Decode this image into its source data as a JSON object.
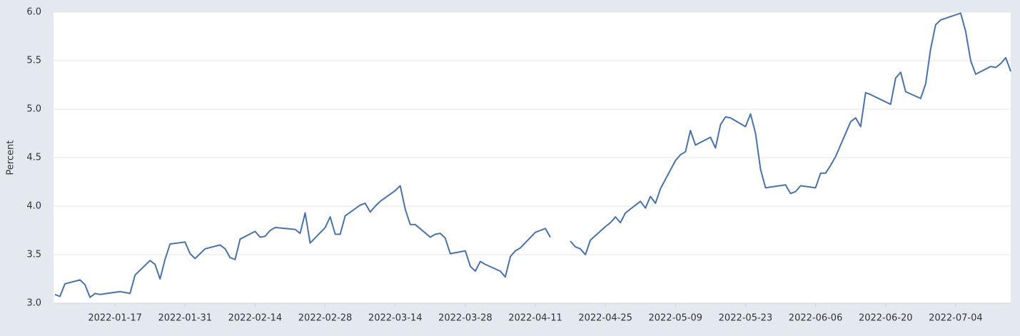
{
  "chart_data": {
    "type": "line",
    "y_label": "Percent",
    "color": "#4a72a8",
    "grid": true,
    "x": [
      "2022-01-05",
      "2022-01-06",
      "2022-01-07",
      "2022-01-10",
      "2022-01-11",
      "2022-01-12",
      "2022-01-13",
      "2022-01-14",
      "2022-01-18",
      "2022-01-19",
      "2022-01-20",
      "2022-01-21",
      "2022-01-24",
      "2022-01-25",
      "2022-01-26",
      "2022-01-27",
      "2022-01-28",
      "2022-01-31",
      "2022-02-01",
      "2022-02-02",
      "2022-02-03",
      "2022-02-04",
      "2022-02-07",
      "2022-02-08",
      "2022-02-09",
      "2022-02-10",
      "2022-02-11",
      "2022-02-14",
      "2022-02-15",
      "2022-02-16",
      "2022-02-17",
      "2022-02-18",
      "2022-02-22",
      "2022-02-23",
      "2022-02-24",
      "2022-02-25",
      "2022-02-28",
      "2022-03-01",
      "2022-03-02",
      "2022-03-03",
      "2022-03-04",
      "2022-03-07",
      "2022-03-08",
      "2022-03-09",
      "2022-03-10",
      "2022-03-11",
      "2022-03-14",
      "2022-03-15",
      "2022-03-16",
      "2022-03-17",
      "2022-03-18",
      "2022-03-21",
      "2022-03-22",
      "2022-03-23",
      "2022-03-24",
      "2022-03-25",
      "2022-03-28",
      "2022-03-29",
      "2022-03-30",
      "2022-03-31",
      "2022-04-01",
      "2022-04-04",
      "2022-04-05",
      "2022-04-06",
      "2022-04-07",
      "2022-04-08",
      "2022-04-11",
      "2022-04-12",
      "2022-04-13",
      "2022-04-14",
      "2022-04-15",
      "2022-04-18",
      "2022-04-19",
      "2022-04-20",
      "2022-04-21",
      "2022-04-22",
      "2022-04-25",
      "2022-04-26",
      "2022-04-27",
      "2022-04-28",
      "2022-04-29",
      "2022-05-02",
      "2022-05-03",
      "2022-05-04",
      "2022-05-05",
      "2022-05-06",
      "2022-05-09",
      "2022-05-10",
      "2022-05-11",
      "2022-05-12",
      "2022-05-13",
      "2022-05-16",
      "2022-05-17",
      "2022-05-18",
      "2022-05-19",
      "2022-05-20",
      "2022-05-23",
      "2022-05-24",
      "2022-05-25",
      "2022-05-26",
      "2022-05-27",
      "2022-05-31",
      "2022-06-01",
      "2022-06-02",
      "2022-06-03",
      "2022-06-06",
      "2022-06-07",
      "2022-06-08",
      "2022-06-09",
      "2022-06-10",
      "2022-06-13",
      "2022-06-14",
      "2022-06-15",
      "2022-06-16",
      "2022-06-17",
      "2022-06-21",
      "2022-06-22",
      "2022-06-23",
      "2022-06-24",
      "2022-06-27",
      "2022-06-28",
      "2022-06-29",
      "2022-06-30",
      "2022-07-01",
      "2022-07-05",
      "2022-07-06",
      "2022-07-07",
      "2022-07-08",
      "2022-07-11",
      "2022-07-12",
      "2022-07-13",
      "2022-07-14",
      "2022-07-15"
    ],
    "values": [
      3.09,
      3.07,
      3.2,
      3.24,
      3.19,
      3.06,
      3.1,
      3.09,
      3.12,
      3.11,
      3.1,
      3.29,
      3.44,
      3.4,
      3.25,
      3.45,
      3.61,
      3.63,
      3.51,
      3.46,
      3.51,
      3.56,
      3.6,
      3.56,
      3.47,
      3.45,
      3.66,
      3.74,
      3.68,
      3.69,
      3.75,
      3.78,
      3.76,
      3.72,
      3.93,
      3.62,
      3.78,
      3.89,
      3.71,
      3.71,
      3.9,
      4.01,
      4.03,
      3.94,
      4.0,
      4.05,
      4.16,
      4.21,
      3.97,
      3.81,
      3.81,
      3.68,
      3.71,
      3.72,
      3.67,
      3.51,
      3.54,
      3.38,
      3.33,
      3.43,
      3.4,
      3.33,
      3.27,
      3.48,
      3.54,
      3.57,
      3.73,
      3.75,
      3.77,
      3.68,
      null,
      3.64,
      3.58,
      3.56,
      3.5,
      3.65,
      3.79,
      3.83,
      3.89,
      3.83,
      3.93,
      4.05,
      3.98,
      4.1,
      4.03,
      4.18,
      4.47,
      4.53,
      4.56,
      4.78,
      4.63,
      4.71,
      4.6,
      4.84,
      4.92,
      4.91,
      4.82,
      4.95,
      4.75,
      4.38,
      4.19,
      4.22,
      4.13,
      4.15,
      4.21,
      4.19,
      4.34,
      4.34,
      4.42,
      4.51,
      4.87,
      4.91,
      4.82,
      5.17,
      5.15,
      5.05,
      5.32,
      5.38,
      5.18,
      5.11,
      5.26,
      5.62,
      5.87,
      5.92,
      5.99,
      5.8,
      5.5,
      5.36,
      5.44,
      5.43,
      5.47,
      5.53,
      5.39
    ],
    "xlim": [
      "2022-01-05",
      "2022-07-15"
    ],
    "xticks": [
      "2022-01-17",
      "2022-01-31",
      "2022-02-14",
      "2022-02-28",
      "2022-03-14",
      "2022-03-28",
      "2022-04-11",
      "2022-04-25",
      "2022-05-09",
      "2022-05-23",
      "2022-06-06",
      "2022-06-20",
      "2022-07-04"
    ],
    "ylim": [
      3,
      6
    ],
    "yticks": [
      {
        "value": 3,
        "label": "3.0"
      },
      {
        "value": 3.5,
        "label": "3.5"
      },
      {
        "value": 4,
        "label": "4.0"
      },
      {
        "value": 4.5,
        "label": "4.5"
      },
      {
        "value": 5,
        "label": "5.0"
      },
      {
        "value": 5.5,
        "label": "5.5"
      },
      {
        "value": 6,
        "label": "6.0"
      }
    ]
  }
}
